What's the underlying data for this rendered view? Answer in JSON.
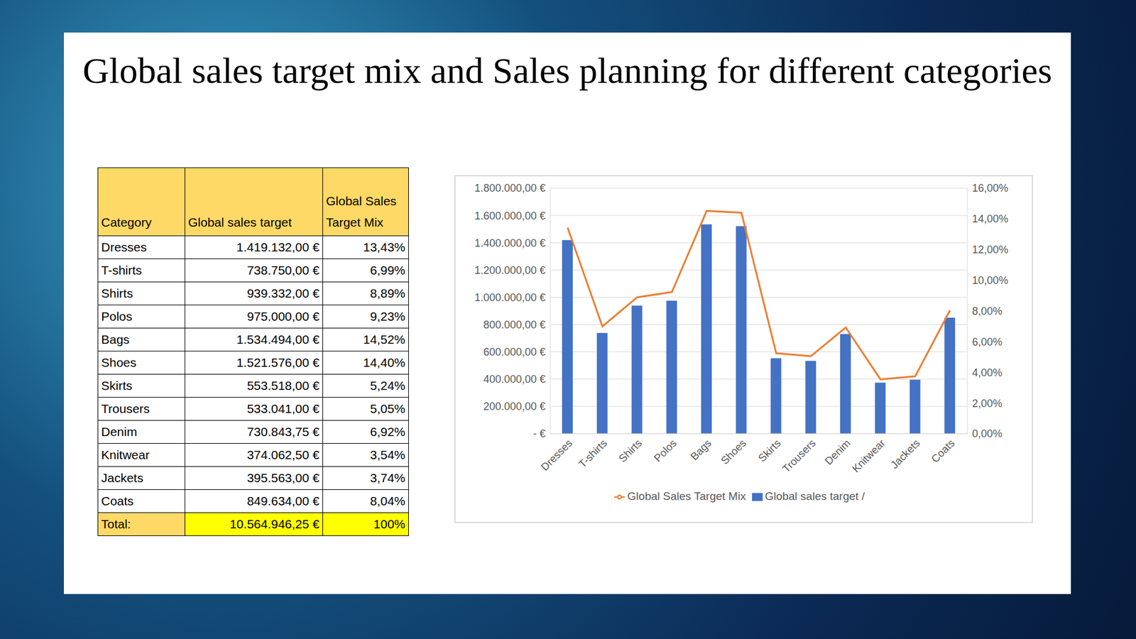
{
  "title": "Global sales target mix and Sales planning for different categories",
  "table": {
    "header": [
      "Category",
      "Global sales target",
      "Global Sales Target Mix"
    ],
    "rows": [
      [
        "Dresses",
        "1.419.132,00 €",
        "13,43%"
      ],
      [
        "T-shirts",
        "738.750,00 €",
        "6,99%"
      ],
      [
        "Shirts",
        "939.332,00 €",
        "8,89%"
      ],
      [
        "Polos",
        "975.000,00 €",
        "9,23%"
      ],
      [
        "Bags",
        "1.534.494,00 €",
        "14,52%"
      ],
      [
        "Shoes",
        "1.521.576,00 €",
        "14,40%"
      ],
      [
        "Skirts",
        "553.518,00 €",
        "5,24%"
      ],
      [
        "Trousers",
        "533.041,00 €",
        "5,05%"
      ],
      [
        "Denim",
        "730.843,75 €",
        "6,92%"
      ],
      [
        "Knitwear",
        "374.062,50 €",
        "3,54%"
      ],
      [
        "Jackets",
        "395.563,00 €",
        "3,74%"
      ],
      [
        "Coats",
        "849.634,00 €",
        "8,04%"
      ]
    ],
    "total": [
      "Total:",
      "10.564.946,25 €",
      "100%"
    ]
  },
  "chart_data": {
    "type": "bar",
    "categories": [
      "Dresses",
      "T-shirts",
      "Shirts",
      "Polos",
      "Bags",
      "Shoes",
      "Skirts",
      "Trousers",
      "Denim",
      "Knitwear",
      "Jackets",
      "Coats"
    ],
    "series": [
      {
        "name": "Global sales target /",
        "type": "bar",
        "color": "#4472c4",
        "values": [
          1419132,
          738750,
          939332,
          975000,
          1534494,
          1521576,
          553518,
          533041,
          730843.75,
          374062.5,
          395563,
          849634
        ]
      },
      {
        "name": "Global Sales Target Mix",
        "type": "line",
        "color": "#ed7d31",
        "axis": "y2",
        "values": [
          13.43,
          6.99,
          8.89,
          9.23,
          14.52,
          14.4,
          5.24,
          5.05,
          6.92,
          3.54,
          3.74,
          8.04
        ]
      }
    ],
    "ylim": [
      0,
      1800000
    ],
    "yticks": [
      {
        "value": 0,
        "label": "- €"
      },
      {
        "value": 200000,
        "label": "200.000,00 €"
      },
      {
        "value": 400000,
        "label": "400.000,00 €"
      },
      {
        "value": 600000,
        "label": "600.000,00 €"
      },
      {
        "value": 800000,
        "label": "800.000,00 €"
      },
      {
        "value": 1000000,
        "label": "1.000.000,00 €"
      },
      {
        "value": 1200000,
        "label": "1.200.000,00 €"
      },
      {
        "value": 1400000,
        "label": "1.400.000,00 €"
      },
      {
        "value": 1600000,
        "label": "1.600.000,00 €"
      },
      {
        "value": 1800000,
        "label": "1.800.000,00 €"
      }
    ],
    "y2lim": [
      0,
      16
    ],
    "y2ticks": [
      {
        "value": 0,
        "label": "0,00%"
      },
      {
        "value": 2,
        "label": "2,00%"
      },
      {
        "value": 4,
        "label": "4,00%"
      },
      {
        "value": 6,
        "label": "6,00%"
      },
      {
        "value": 8,
        "label": "8,00%"
      },
      {
        "value": 10,
        "label": "10,00%"
      },
      {
        "value": 12,
        "label": "12,00%"
      },
      {
        "value": 14,
        "label": "14,00%"
      },
      {
        "value": 16,
        "label": "16,00%"
      }
    ],
    "grid": true,
    "legend": "bottom"
  }
}
